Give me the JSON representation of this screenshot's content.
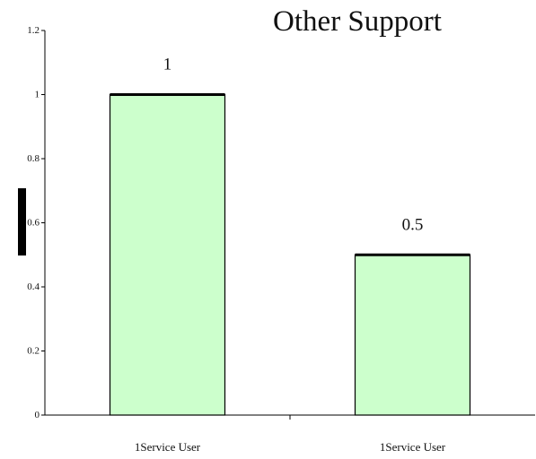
{
  "chart_data": {
    "type": "bar",
    "title": "Other Support",
    "xlabel": "",
    "ylabel": "",
    "categories": [
      "1Service User",
      "1Service User"
    ],
    "values": [
      1,
      0.5
    ],
    "data_labels": [
      "1",
      "0.5"
    ],
    "ylim": [
      0,
      1.2
    ],
    "yticks": [
      "0",
      "0.2",
      "0.4",
      "0.6",
      "0.8",
      "1",
      "1.2"
    ],
    "grid": false,
    "legend": "none",
    "colors": {
      "bar_fill": "#ccffcc",
      "bar_stroke": "#000000",
      "axis": "#000000"
    }
  }
}
